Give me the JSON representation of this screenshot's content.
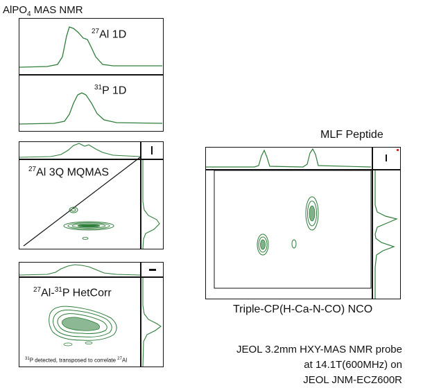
{
  "title": {
    "main": "AlPO",
    "sub": "4",
    "rest": " MAS NMR"
  },
  "panels": {
    "al1d": {
      "sup": "27",
      "text": "Al 1D"
    },
    "p1d": {
      "sup": "31",
      "text": "P 1D"
    },
    "mqmas": {
      "sup": "27",
      "text": "Al 3Q MQMAS"
    },
    "hetcorr": {
      "sup1": "27",
      "mid": "Al-",
      "sup2": "31",
      "text": "P HetCorr"
    },
    "hetcorr_note": {
      "sup1": "31",
      "mid": "P detected, transposed to correlate ",
      "sup2": "27",
      "end": "Al"
    }
  },
  "peptide": {
    "title": "MLF Peptide",
    "caption": "Triple-CP(H-Ca-N-CO) NCO"
  },
  "info": {
    "line1": "JEOL 3.2mm HXY-MAS NMR probe",
    "line2": "at 14.1T(600MHz) on",
    "line3": "JEOL JNM-ECZ600R"
  },
  "colors": {
    "trace": "#2e7d3a",
    "axis": "#111111"
  }
}
